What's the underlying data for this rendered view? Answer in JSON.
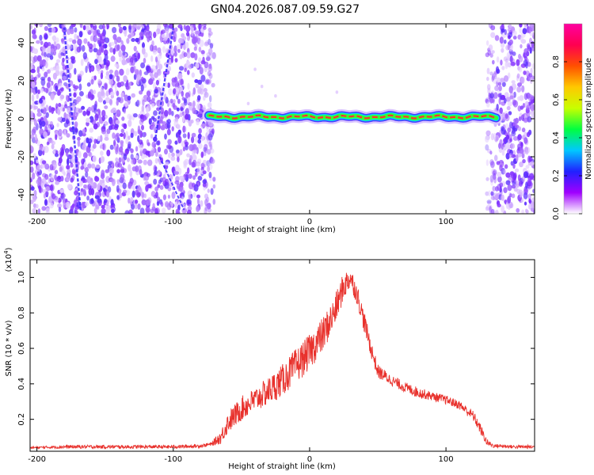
{
  "title": "GN04.2026.087.09.59.G27",
  "chart_data": [
    {
      "type": "heatmap",
      "xlabel": "Height of straight line (km)",
      "ylabel": "Frequency (Hz)",
      "xlim": [
        -205,
        165
      ],
      "ylim": [
        -50,
        50
      ],
      "xticks": [
        -200,
        -100,
        0,
        100
      ],
      "xtick_labels": [
        "-200",
        "-100",
        "0",
        "100"
      ],
      "yticks": [
        -40,
        -20,
        0,
        20,
        40
      ],
      "ytick_labels": [
        "-40",
        "-20",
        "0",
        "20",
        "40"
      ],
      "signal_track": {
        "x_start": -74,
        "x_end": 137,
        "frequency": 1
      },
      "noise_regions": [
        [
          -205,
          -70
        ],
        [
          130,
          165
        ]
      ],
      "colorbar": {
        "label": "Normalized spectral amplitude",
        "range": [
          0,
          1
        ],
        "ticks": [
          0.0,
          0.2,
          0.4,
          0.6,
          0.8
        ],
        "tick_labels": [
          "0.0",
          "0.2",
          "0.4",
          "0.6",
          "0.8"
        ],
        "colors": [
          "#ffffff",
          "#a000ff",
          "#2020ff",
          "#00c8ff",
          "#00ff40",
          "#c8ff00",
          "#ffc800",
          "#ff5000",
          "#ff0050",
          "#ff00a0"
        ]
      }
    },
    {
      "type": "line",
      "xlabel": "Height of straight line (km)",
      "ylabel": "SNR (10 * v/v)",
      "multiplier_label": "(x10",
      "multiplier_exp": "4",
      "multiplier_close": ")",
      "xlim": [
        -205,
        165
      ],
      "ylim": [
        0.02,
        1.1
      ],
      "xticks": [
        -200,
        -100,
        0,
        100
      ],
      "xtick_labels": [
        "-200",
        "-100",
        "0",
        "100"
      ],
      "yticks": [
        0.2,
        0.4,
        0.6,
        0.8,
        1.0
      ],
      "ytick_labels": [
        "0.2",
        "0.4",
        "0.6",
        "0.8",
        "1.0"
      ],
      "color": "#e8312c",
      "series": [
        {
          "name": "SNR",
          "x": [
            -205,
            -180,
            -150,
            -120,
            -100,
            -80,
            -72,
            -65,
            -60,
            -50,
            -40,
            -30,
            -20,
            -10,
            0,
            10,
            18,
            25,
            30,
            35,
            40,
            45,
            50,
            60,
            70,
            80,
            90,
            100,
            110,
            120,
            125,
            130,
            135,
            140,
            150,
            165
          ],
          "y": [
            0.04,
            0.045,
            0.045,
            0.045,
            0.045,
            0.05,
            0.06,
            0.1,
            0.18,
            0.26,
            0.31,
            0.36,
            0.42,
            0.5,
            0.58,
            0.68,
            0.8,
            0.95,
            1.0,
            0.9,
            0.75,
            0.6,
            0.47,
            0.42,
            0.38,
            0.35,
            0.33,
            0.31,
            0.28,
            0.22,
            0.15,
            0.07,
            0.05,
            0.05,
            0.045,
            0.045
          ],
          "noise_amplitude": [
            0.005,
            0.01,
            0.01,
            0.01,
            0.01,
            0.01,
            0.01,
            0.04,
            0.06,
            0.07,
            0.07,
            0.08,
            0.09,
            0.1,
            0.1,
            0.1,
            0.09,
            0.08,
            0.06,
            0.06,
            0.06,
            0.05,
            0.04,
            0.03,
            0.03,
            0.03,
            0.025,
            0.025,
            0.025,
            0.03,
            0.03,
            0.02,
            0.01,
            0.01,
            0.01,
            0.01
          ]
        }
      ]
    }
  ]
}
